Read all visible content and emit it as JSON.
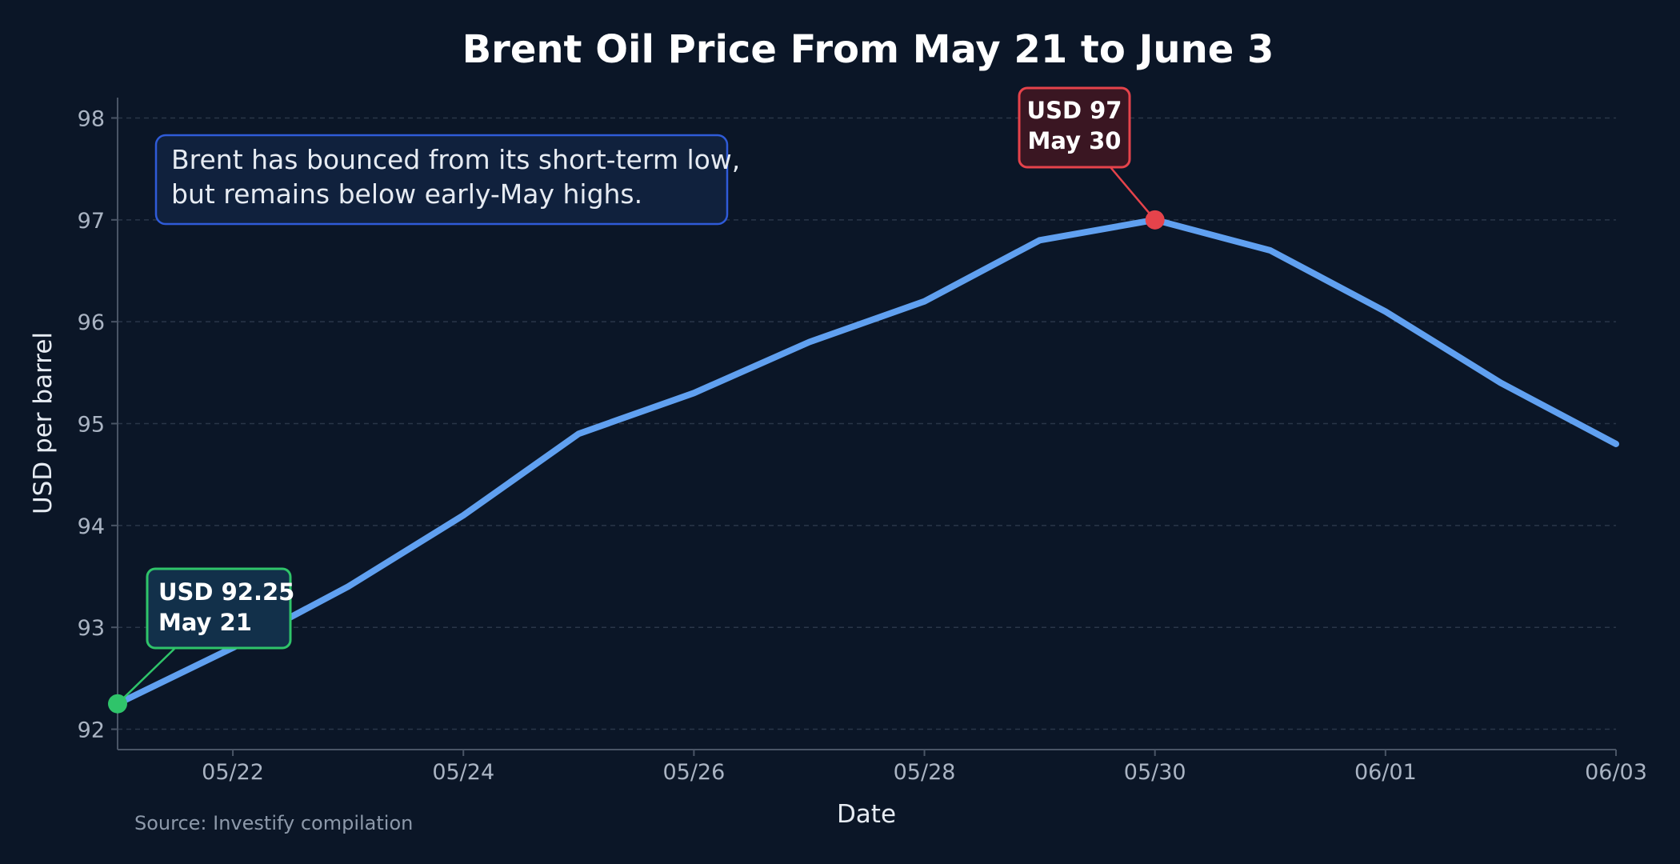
{
  "chart_data": {
    "type": "line",
    "title": "Brent Oil Price From May 21 to June 3",
    "xlabel": "Date",
    "ylabel": "USD per barrel",
    "x": [
      "05/21",
      "05/22",
      "05/23",
      "05/24",
      "05/25",
      "05/26",
      "05/27",
      "05/28",
      "05/29",
      "05/30",
      "05/31",
      "06/01",
      "06/02",
      "06/03"
    ],
    "series": [
      {
        "values": [
          92.25,
          92.8,
          93.4,
          94.1,
          94.9,
          95.3,
          95.8,
          96.2,
          96.8,
          97.0,
          96.7,
          96.1,
          95.4,
          94.8
        ],
        "color": "#60a0f0"
      }
    ],
    "xticks": [
      "05/22",
      "05/24",
      "05/26",
      "05/28",
      "05/30",
      "06/01",
      "06/03"
    ],
    "yticks": [
      92,
      93,
      94,
      95,
      96,
      97,
      98
    ],
    "ylim": [
      91.8,
      98.2
    ],
    "grid": "horizontal-dashed",
    "annotations": [
      {
        "x": "05/21",
        "y": 92.25,
        "line1": "USD 92.25",
        "line2": "May 21",
        "color": "#2fc46a",
        "fill": "#12304a"
      },
      {
        "x": "05/30",
        "y": 97.0,
        "line1": "USD 97",
        "line2": "May 30",
        "color": "#e5434b",
        "fill": "#3a1622"
      }
    ],
    "note": {
      "line1": "Brent has bounced from its short-term low,",
      "line2": "but remains below early-May highs.",
      "border_color": "#2f5bd8",
      "fill": "#10213d"
    },
    "source": "Source: Investify compilation",
    "background": "#0b1627"
  }
}
